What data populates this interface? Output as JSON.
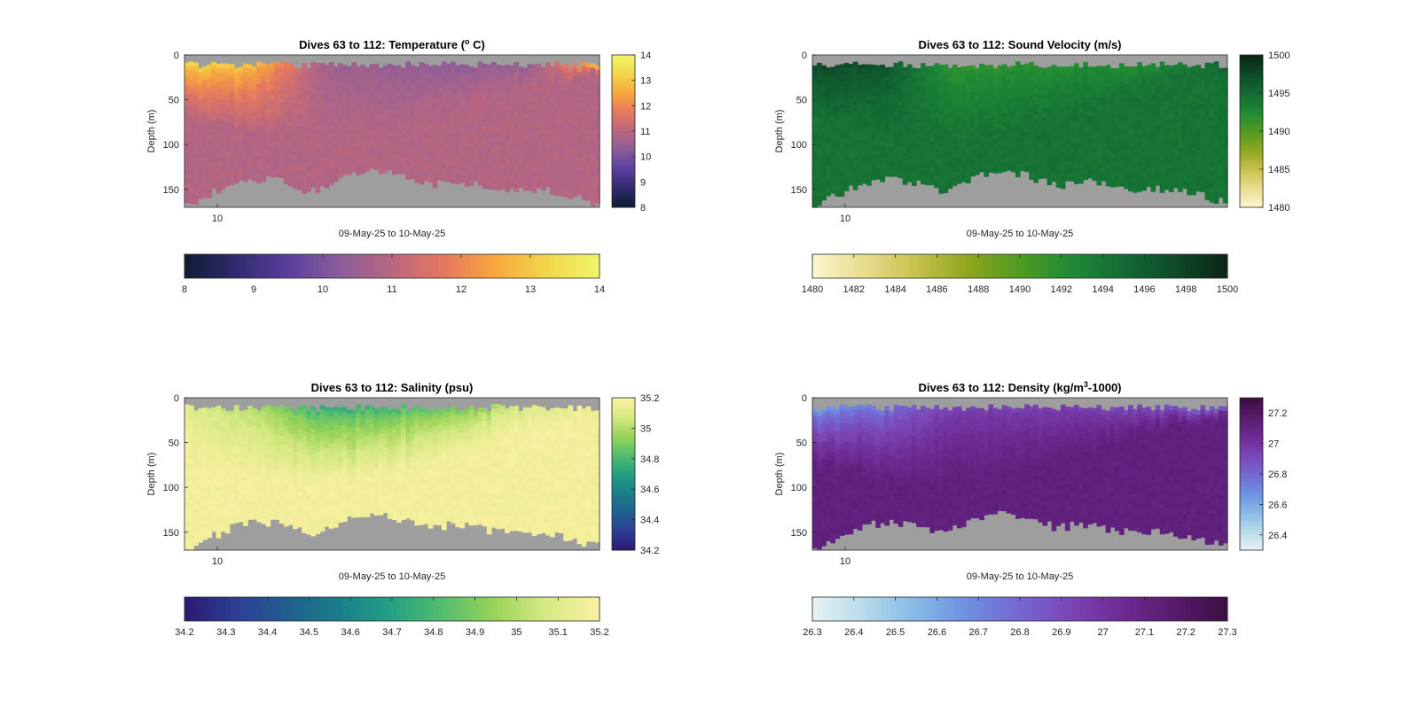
{
  "chart_data": [
    {
      "type": "heatmap",
      "id": "temperature",
      "title_prefix": "Dives 63 to 112: Temperature (",
      "title_sup": "o",
      "title_suffix": " C)",
      "ylabel": "Depth (m)",
      "xlabel": "09-May-25 to 10-May-25",
      "x_tick_labels": [
        "10"
      ],
      "y_ticks": [
        0,
        50,
        100,
        150
      ],
      "ylim": [
        0,
        170
      ],
      "clim": [
        8,
        14
      ],
      "colormap": [
        "#0d1b33",
        "#2f2b6e",
        "#5b3e9c",
        "#8a5d9a",
        "#b9677f",
        "#e5785f",
        "#f7a83e",
        "#f2d74a",
        "#f0f56b"
      ],
      "right_colorbar_ticks": [
        14,
        13,
        12,
        11,
        10,
        9,
        8
      ],
      "bottom_colorbar_ticks": [
        8,
        9,
        10,
        11,
        12,
        13,
        14
      ],
      "nodata_color": "#9e9e9e",
      "profile": {
        "columns": 92,
        "surface_values_by_segment": [
          13.2,
          12.8,
          10.6,
          10.4,
          10.3,
          10.5,
          12.6
        ],
        "deep_value": 10.9,
        "bottom_depth_m": [
          168,
          160,
          152,
          145,
          140,
          138,
          140,
          145,
          152,
          148,
          140,
          132,
          128,
          130,
          135,
          140,
          145,
          142,
          140,
          145,
          148,
          150,
          148,
          150,
          152,
          155,
          160,
          165
        ]
      }
    },
    {
      "type": "heatmap",
      "id": "sound_velocity",
      "title_prefix": "Dives 63 to 112: Sound Velocity (m/s)",
      "title_sup": "",
      "title_suffix": "",
      "ylabel": "Depth (m)",
      "xlabel": "09-May-25 to 10-May-25",
      "x_tick_labels": [
        "10"
      ],
      "y_ticks": [
        0,
        50,
        100,
        150
      ],
      "ylim": [
        0,
        170
      ],
      "clim": [
        1480,
        1500
      ],
      "colormap": [
        "#fdf6cf",
        "#e9dc8f",
        "#c6c24c",
        "#8fa61f",
        "#4f9b21",
        "#1f8a35",
        "#136a34",
        "#0e4a27",
        "#0b2417"
      ],
      "right_colorbar_ticks": [
        1500,
        1495,
        1490,
        1485,
        1480
      ],
      "bottom_colorbar_ticks": [
        1480,
        1482,
        1484,
        1486,
        1488,
        1490,
        1492,
        1494,
        1496,
        1498,
        1500
      ],
      "nodata_color": "#9e9e9e",
      "profile": {
        "columns": 92,
        "surface_values_by_segment": [
          1497.5,
          1496.8,
          1491.5,
          1491.8,
          1492.2,
          1492.5,
          1495.5
        ],
        "deep_value": 1494.3,
        "bottom_depth_m": [
          168,
          160,
          152,
          145,
          140,
          138,
          140,
          145,
          152,
          148,
          140,
          132,
          128,
          130,
          135,
          140,
          145,
          142,
          140,
          145,
          148,
          150,
          148,
          150,
          152,
          155,
          160,
          165
        ]
      }
    },
    {
      "type": "heatmap",
      "id": "salinity",
      "title_prefix": "Dives 63 to 112: Salinity (psu)",
      "title_sup": "",
      "title_suffix": "",
      "ylabel": "Depth (m)",
      "xlabel": "09-May-25 to 10-May-25",
      "x_tick_labels": [
        "10"
      ],
      "y_ticks": [
        0,
        50,
        100,
        150
      ],
      "ylim": [
        0,
        170
      ],
      "clim": [
        34.2,
        35.2
      ],
      "colormap": [
        "#2a1a6f",
        "#2d3f95",
        "#215f8f",
        "#1a7f8a",
        "#24a083",
        "#55be6c",
        "#9bd45a",
        "#d8ea85",
        "#fbf0a3"
      ],
      "right_colorbar_ticks": [
        35.2,
        35,
        34.8,
        34.6,
        34.4,
        34.2
      ],
      "bottom_colorbar_ticks": [
        34.2,
        34.3,
        34.4,
        34.5,
        34.6,
        34.7,
        34.8,
        34.9,
        35,
        35.1,
        35.2
      ],
      "nodata_color": "#9e9e9e",
      "profile": {
        "columns": 92,
        "surface_values_by_segment": [
          35.1,
          35.0,
          34.75,
          34.8,
          34.9,
          35.1,
          35.15
        ],
        "deep_value": 35.17,
        "bottom_depth_m": [
          168,
          160,
          152,
          145,
          140,
          138,
          140,
          145,
          152,
          148,
          140,
          132,
          128,
          130,
          135,
          140,
          145,
          142,
          140,
          145,
          148,
          150,
          148,
          150,
          152,
          155,
          160,
          165
        ]
      }
    },
    {
      "type": "heatmap",
      "id": "density",
      "title_prefix": "Dives 63 to 112: Density (kg/m",
      "title_sup": "3",
      "title_suffix": "-1000)",
      "ylabel": "Depth (m)",
      "xlabel": "09-May-25 to 10-May-25",
      "x_tick_labels": [
        "10"
      ],
      "y_ticks": [
        0,
        50,
        100,
        150
      ],
      "ylim": [
        0,
        170
      ],
      "clim": [
        26.3,
        27.3
      ],
      "colormap": [
        "#e7f2f2",
        "#b6dbea",
        "#86b9e6",
        "#6e8fe0",
        "#7566d2",
        "#7a45b4",
        "#6d2a92",
        "#561b6c",
        "#3b0f3f"
      ],
      "right_colorbar_ticks": [
        27.2,
        27,
        26.8,
        26.6,
        26.4
      ],
      "bottom_colorbar_ticks": [
        26.3,
        26.4,
        26.5,
        26.6,
        26.7,
        26.8,
        26.9,
        27,
        27.1,
        27.2,
        27.3
      ],
      "nodata_color": "#9e9e9e",
      "profile": {
        "columns": 92,
        "surface_values_by_segment": [
          26.65,
          26.75,
          26.95,
          26.95,
          26.95,
          26.9,
          26.85
        ],
        "deep_value": 27.12,
        "bottom_depth_m": [
          168,
          160,
          152,
          145,
          140,
          138,
          140,
          145,
          152,
          148,
          140,
          132,
          128,
          130,
          135,
          140,
          145,
          142,
          140,
          145,
          148,
          150,
          148,
          150,
          152,
          155,
          160,
          165
        ]
      }
    }
  ]
}
